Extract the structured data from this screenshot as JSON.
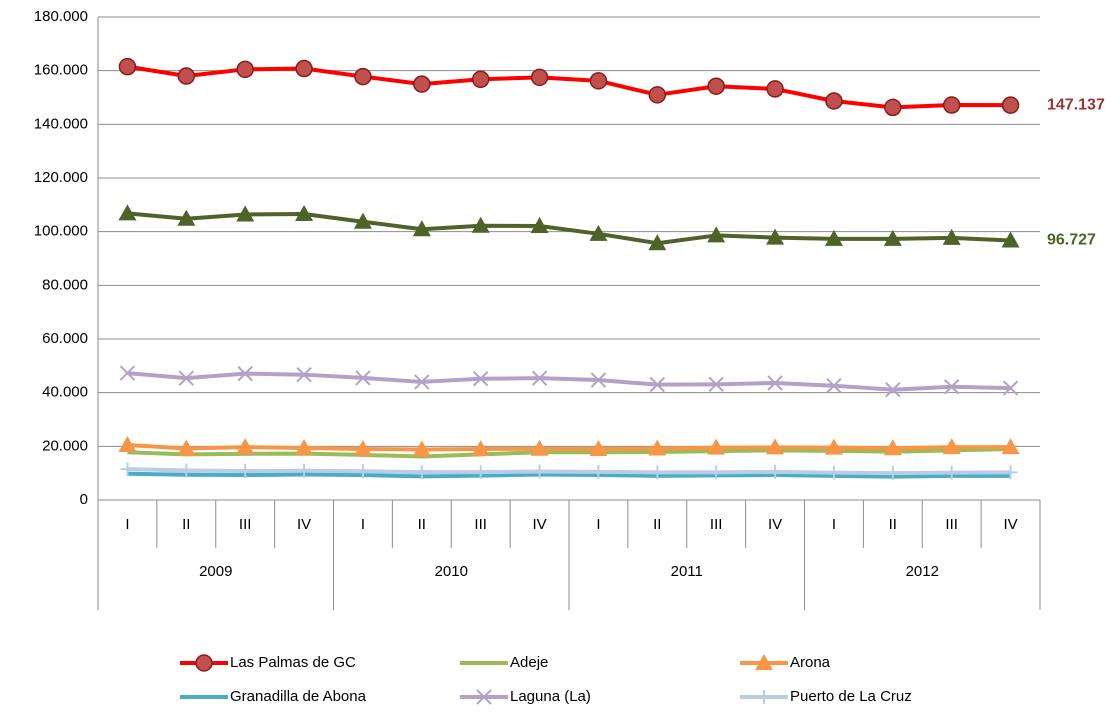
{
  "chart_data": {
    "type": "line",
    "categories": [
      "I",
      "II",
      "III",
      "IV",
      "I",
      "II",
      "III",
      "IV",
      "I",
      "II",
      "III",
      "IV",
      "I",
      "II",
      "III",
      "IV"
    ],
    "category_groups": [
      "2009",
      "2010",
      "2011",
      "2012"
    ],
    "ylim": [
      0,
      180000
    ],
    "yticks": [
      0,
      {
        "value": 20000,
        "label": "20.000"
      },
      {
        "value": 40000,
        "label": "40.000"
      },
      {
        "value": 60000,
        "label": "60.000"
      },
      {
        "value": 80000,
        "label": "80.000"
      },
      {
        "value": 100000,
        "label": "100.000"
      },
      {
        "value": 120000,
        "label": "120.000"
      },
      {
        "value": 140000,
        "label": "140.000"
      },
      {
        "value": 160000,
        "label": "160.000"
      },
      {
        "value": 180000,
        "label": "180.000"
      }
    ],
    "grid": true,
    "legend": "bottom",
    "series": [
      {
        "name": "Las Palmas de GC",
        "color": "#ff0000",
        "marker": "circle",
        "marker_color": "#c0504d",
        "label_color": "#953735",
        "values": [
          161500,
          158000,
          160500,
          160800,
          157800,
          155000,
          156800,
          157500,
          156200,
          151000,
          154200,
          153200,
          148700,
          146300,
          147200,
          147137
        ],
        "value_labels": [
          null,
          null,
          null,
          null,
          null,
          null,
          null,
          null,
          null,
          null,
          null,
          null,
          null,
          null,
          null,
          "147.137"
        ]
      },
      {
        "name": "Adeje",
        "color": "#9bbb59",
        "marker": "none",
        "values": [
          17800,
          17000,
          17200,
          17300,
          16800,
          16200,
          17000,
          17800,
          17800,
          17900,
          18200,
          18500,
          18300,
          18000,
          18500,
          19000
        ]
      },
      {
        "name": "Arona",
        "color": "#f79646",
        "marker": "triangle",
        "marker_color": "#f79646",
        "values": [
          20500,
          19200,
          19700,
          19400,
          19000,
          18800,
          19000,
          19100,
          19000,
          19200,
          19500,
          19600,
          19500,
          19300,
          19700,
          19700
        ]
      },
      {
        "name": "Granadilla de Abona",
        "color": "#4bacc6",
        "marker": "none",
        "values": [
          9800,
          9400,
          9300,
          9500,
          9300,
          8800,
          9100,
          9500,
          9300,
          9000,
          9200,
          9300,
          9000,
          8700,
          9000,
          9000
        ]
      },
      {
        "name": "Laguna (La)",
        "color": "#b3a2c7",
        "marker": "x",
        "marker_color": "#b3a2c7",
        "values": [
          47300,
          45400,
          47100,
          46700,
          45500,
          44000,
          45200,
          45400,
          44700,
          43000,
          43100,
          43600,
          42600,
          41100,
          42200,
          41700
        ]
      },
      {
        "name": "Puerto de La Cruz",
        "color": "#b9cde5",
        "marker": "plus",
        "marker_color": "#b9cde5",
        "values": [
          11500,
          11000,
          10800,
          10900,
          10700,
          10400,
          10400,
          10600,
          10500,
          10300,
          10300,
          10500,
          10200,
          10000,
          10200,
          10300
        ]
      },
      {
        "color": "#4f6228",
        "marker": "triangle",
        "marker_color": "#4f6228",
        "label_color": "#4f6228",
        "values": [
          106800,
          104800,
          106400,
          106600,
          103700,
          100900,
          102200,
          102100,
          99200,
          95700,
          98600,
          97800,
          97300,
          97300,
          97700,
          96727
        ],
        "value_labels": [
          null,
          null,
          null,
          null,
          null,
          null,
          null,
          null,
          null,
          null,
          null,
          null,
          null,
          null,
          null,
          "96.727"
        ]
      }
    ]
  }
}
